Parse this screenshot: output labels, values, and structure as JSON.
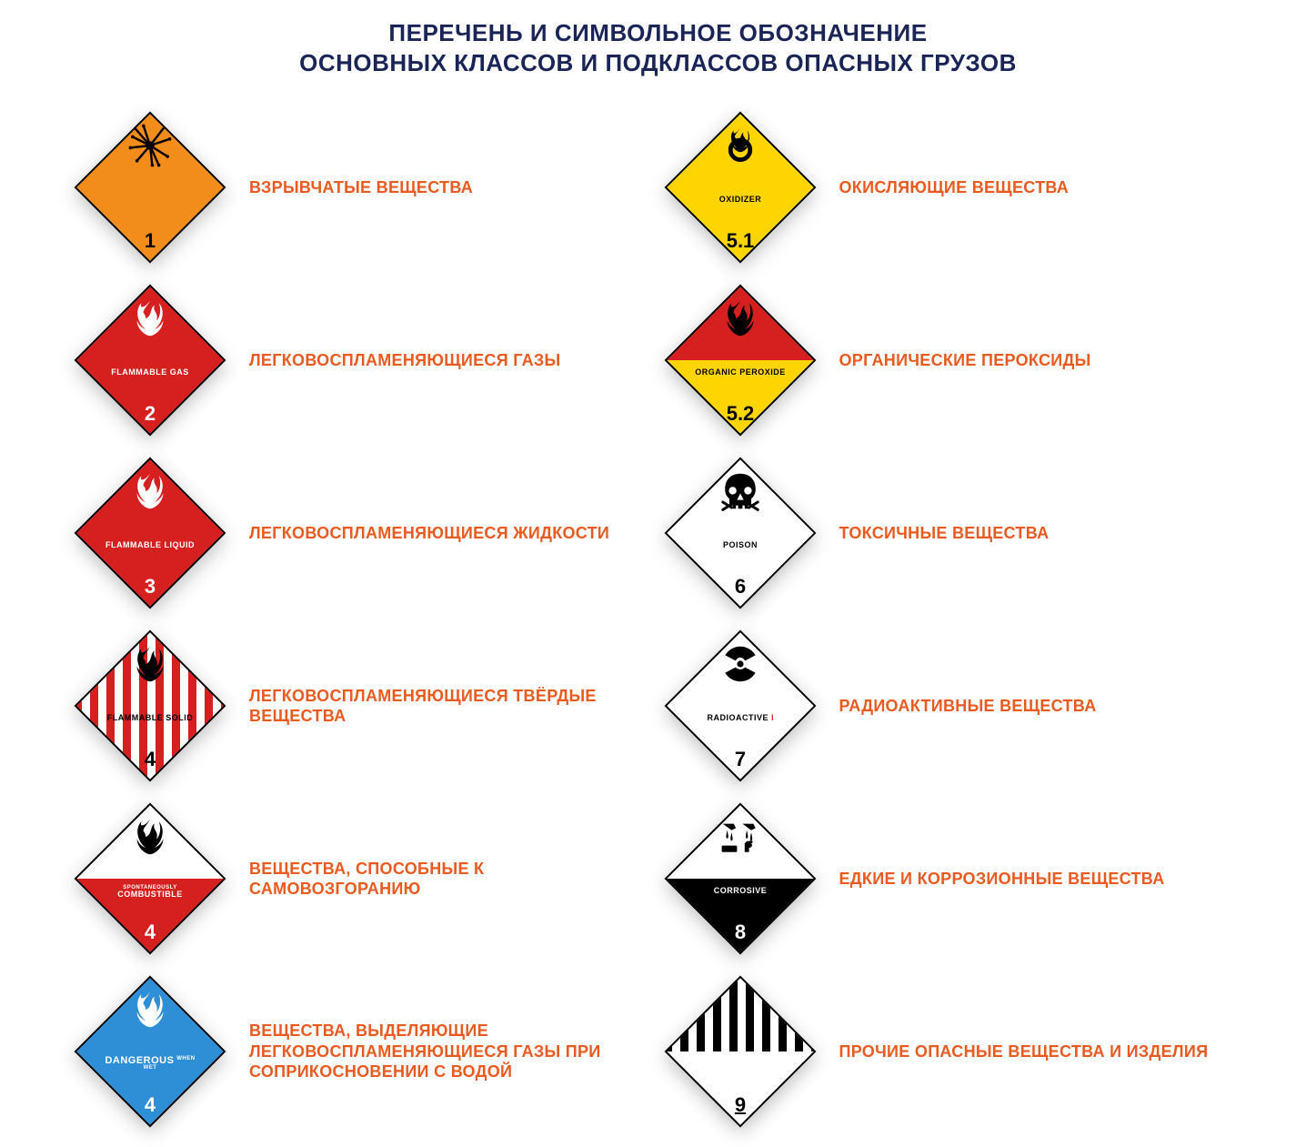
{
  "title_line1": "ПЕРЕЧЕНЬ И СИМВОЛЬНОЕ ОБОЗНАЧЕНИЕ",
  "title_line2": "ОСНОВНЫХ КЛАССОВ И ПОДКЛАССОВ ОПАСНЫХ ГРУЗОВ",
  "colors": {
    "title": "#1a2456",
    "label": "#e85a1f",
    "orange": "#f28c1a",
    "red": "#d6201f",
    "yellow": "#ffd500",
    "blue": "#2f8fd6",
    "white": "#ffffff",
    "black": "#000000"
  },
  "label_fontsize": 18,
  "title_fontsize": 26,
  "items": [
    {
      "id": "class-1",
      "label": "ВЗРЫВЧАТЫЕ ВЕЩЕСТВА",
      "placard": {
        "bg": "#f28c1a",
        "bg2": null,
        "icon": "explosion",
        "icon_color": "#000000",
        "text": "",
        "text_color": "#000000",
        "number": "1",
        "number_color": "#000000",
        "border": "#000000"
      }
    },
    {
      "id": "class-5-1",
      "label": "ОКИСЛЯЮЩИЕ ВЕЩЕСТВА",
      "placard": {
        "bg": "#ffd500",
        "bg2": null,
        "icon": "oxidizer",
        "icon_color": "#000000",
        "text": "OXIDIZER",
        "text_color": "#000000",
        "number": "5.1",
        "number_color": "#000000",
        "border": "#000000"
      }
    },
    {
      "id": "class-2",
      "label": "ЛЕГКОВОСПЛАМЕНЯЮЩИЕСЯ ГАЗЫ",
      "placard": {
        "bg": "#d6201f",
        "bg2": null,
        "icon": "flame",
        "icon_color": "#ffffff",
        "text": "FLAMMABLE GAS",
        "text_color": "#ffffff",
        "number": "2",
        "number_color": "#ffffff",
        "border": "#000000"
      }
    },
    {
      "id": "class-5-2",
      "label": "ОРГАНИЧЕСКИЕ ПЕРОКСИДЫ",
      "placard": {
        "bg": "#d6201f",
        "bg2": "#ffd500",
        "icon": "flame",
        "icon_color": "#000000",
        "text": "ORGANIC PEROXIDE",
        "text_color": "#000000",
        "number": "5.2",
        "number_color": "#000000",
        "border": "#000000"
      }
    },
    {
      "id": "class-3",
      "label": "ЛЕГКОВОСПЛАМЕНЯЮЩИЕСЯ ЖИДКОСТИ",
      "placard": {
        "bg": "#d6201f",
        "bg2": null,
        "icon": "flame",
        "icon_color": "#ffffff",
        "text": "FLAMMABLE LIQUID",
        "text_color": "#ffffff",
        "number": "3",
        "number_color": "#ffffff",
        "border": "#000000"
      }
    },
    {
      "id": "class-6",
      "label": "ТОКСИЧНЫЕ ВЕЩЕСТВА",
      "placard": {
        "bg": "#ffffff",
        "bg2": null,
        "icon": "skull",
        "icon_color": "#000000",
        "text": "POISON",
        "text_color": "#000000",
        "number": "6",
        "number_color": "#000000",
        "border": "#000000"
      }
    },
    {
      "id": "class-4-1",
      "label": "ЛЕГКОВОСПЛАМЕНЯЮЩИЕСЯ ТВЁРДЫЕ ВЕЩЕСТВА",
      "placard": {
        "bg": "stripes",
        "bg2": null,
        "icon": "flame",
        "icon_color": "#000000",
        "text": "FLAMMABLE SOLID",
        "text_color": "#000000",
        "number": "4",
        "number_color": "#000000",
        "border": "#000000"
      }
    },
    {
      "id": "class-7",
      "label": "РАДИОАКТИВНЫЕ ВЕЩЕСТВА",
      "placard": {
        "bg": "#ffffff",
        "bg2": null,
        "icon": "radioactive",
        "icon_color": "#000000",
        "text": "RADIOACTIVE I",
        "text_color": "#000000",
        "text_accent": "#d6201f",
        "number": "7",
        "number_color": "#000000",
        "border": "#000000"
      }
    },
    {
      "id": "class-4-2",
      "label": "ВЕЩЕСТВА, СПОСОБНЫЕ К САМОВОЗГОРАНИЮ",
      "placard": {
        "bg": "#ffffff",
        "bg2": "#d6201f",
        "icon": "flame",
        "icon_color": "#000000",
        "text": "SPONTANEOUSLY COMBUSTIBLE",
        "text_color": "#ffffff",
        "text_fontsize": 7,
        "number": "4",
        "number_color": "#ffffff",
        "border": "#000000"
      }
    },
    {
      "id": "class-8",
      "label": "ЕДКИЕ И КОРРОЗИОННЫЕ ВЕЩЕСТВА",
      "placard": {
        "bg": "#ffffff",
        "bg2": "#000000",
        "icon": "corrosive",
        "icon_color": "#000000",
        "text": "CORROSIVE",
        "text_color": "#ffffff",
        "number": "8",
        "number_color": "#ffffff",
        "border": "#000000"
      }
    },
    {
      "id": "class-4-3",
      "label": "ВЕЩЕСТВА, ВЫДЕЛЯЮЩИЕ ЛЕГКОВОСПЛАМЕНЯЮЩИЕСЯ ГАЗЫ ПРИ СОПРИКОСНОВЕНИИ С ВОДОЙ",
      "placard": {
        "bg": "#2f8fd6",
        "bg2": null,
        "icon": "flame",
        "icon_color": "#ffffff",
        "text": "DANGEROUS WHEN WET",
        "text_color": "#ffffff",
        "text_fontsize": 8,
        "number": "4",
        "number_color": "#ffffff",
        "border": "#000000"
      }
    },
    {
      "id": "class-9",
      "label": "ПРОЧИЕ ОПАСНЫЕ ВЕЩЕСТВА И ИЗДЕЛИЯ",
      "placard": {
        "bg": "class9",
        "bg2": null,
        "icon": "none",
        "icon_color": "#000000",
        "text": "",
        "text_color": "#000000",
        "number": "9",
        "number_color": "#000000",
        "number_underline": true,
        "border": "#000000"
      }
    }
  ]
}
